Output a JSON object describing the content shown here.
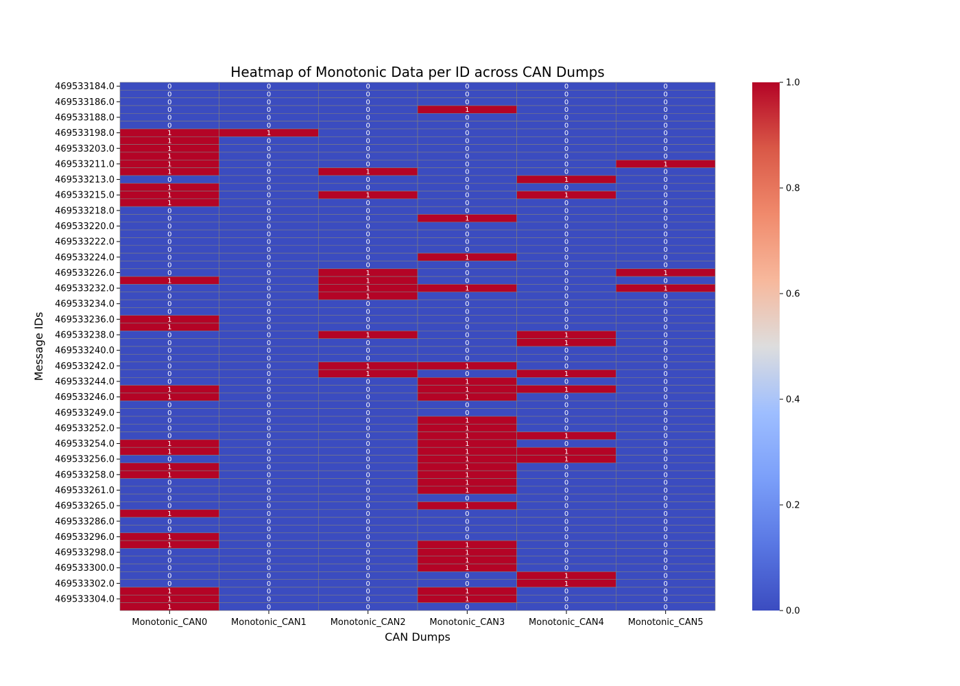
{
  "chart_data": {
    "type": "heatmap",
    "title": "Heatmap of Monotonic Data per ID across CAN Dumps",
    "xlabel": "CAN Dumps",
    "ylabel": "Message IDs",
    "columns": [
      "Monotonic_CAN0",
      "Monotonic_CAN1",
      "Monotonic_CAN2",
      "Monotonic_CAN3",
      "Monotonic_CAN4",
      "Monotonic_CAN5"
    ],
    "y_tick_labels": [
      "469533184.0",
      "",
      "469533186.0",
      "",
      "469533188.0",
      "",
      "469533198.0",
      "",
      "469533203.0",
      "",
      "469533211.0",
      "",
      "469533213.0",
      "",
      "469533215.0",
      "",
      "469533218.0",
      "",
      "469533220.0",
      "",
      "469533222.0",
      "",
      "469533224.0",
      "",
      "469533226.0",
      "",
      "469533232.0",
      "",
      "469533234.0",
      "",
      "469533236.0",
      "",
      "469533238.0",
      "",
      "469533240.0",
      "",
      "469533242.0",
      "",
      "469533244.0",
      "",
      "469533246.0",
      "",
      "469533249.0",
      "",
      "469533252.0",
      "",
      "469533254.0",
      "",
      "469533256.0",
      "",
      "469533258.0",
      "",
      "469533261.0",
      "",
      "469533265.0",
      "",
      "469533286.0",
      "",
      "469533296.0",
      "",
      "469533298.0",
      "",
      "469533300.0",
      "",
      "469533302.0",
      "",
      "469533304.0",
      ""
    ],
    "values": [
      [
        0,
        0,
        0,
        0,
        0,
        0
      ],
      [
        0,
        0,
        0,
        0,
        0,
        0
      ],
      [
        0,
        0,
        0,
        0,
        0,
        0
      ],
      [
        0,
        0,
        0,
        1,
        0,
        0
      ],
      [
        0,
        0,
        0,
        0,
        0,
        0
      ],
      [
        0,
        0,
        0,
        0,
        0,
        0
      ],
      [
        1,
        1,
        0,
        0,
        0,
        0
      ],
      [
        1,
        0,
        0,
        0,
        0,
        0
      ],
      [
        1,
        0,
        0,
        0,
        0,
        0
      ],
      [
        1,
        0,
        0,
        0,
        0,
        0
      ],
      [
        1,
        0,
        0,
        0,
        0,
        1
      ],
      [
        1,
        0,
        1,
        0,
        0,
        0
      ],
      [
        0,
        0,
        0,
        0,
        1,
        0
      ],
      [
        1,
        0,
        0,
        0,
        0,
        0
      ],
      [
        1,
        0,
        1,
        0,
        1,
        0
      ],
      [
        1,
        0,
        0,
        0,
        0,
        0
      ],
      [
        0,
        0,
        0,
        0,
        0,
        0
      ],
      [
        0,
        0,
        0,
        1,
        0,
        0
      ],
      [
        0,
        0,
        0,
        0,
        0,
        0
      ],
      [
        0,
        0,
        0,
        0,
        0,
        0
      ],
      [
        0,
        0,
        0,
        0,
        0,
        0
      ],
      [
        0,
        0,
        0,
        0,
        0,
        0
      ],
      [
        0,
        0,
        0,
        1,
        0,
        0
      ],
      [
        0,
        0,
        0,
        0,
        0,
        0
      ],
      [
        0,
        0,
        1,
        0,
        0,
        1
      ],
      [
        1,
        0,
        1,
        0,
        0,
        0
      ],
      [
        0,
        0,
        1,
        1,
        0,
        1
      ],
      [
        0,
        0,
        1,
        0,
        0,
        0
      ],
      [
        0,
        0,
        0,
        0,
        0,
        0
      ],
      [
        0,
        0,
        0,
        0,
        0,
        0
      ],
      [
        1,
        0,
        0,
        0,
        0,
        0
      ],
      [
        1,
        0,
        0,
        0,
        0,
        0
      ],
      [
        0,
        0,
        1,
        0,
        1,
        0
      ],
      [
        0,
        0,
        0,
        0,
        1,
        0
      ],
      [
        0,
        0,
        0,
        0,
        0,
        0
      ],
      [
        0,
        0,
        0,
        0,
        0,
        0
      ],
      [
        0,
        0,
        1,
        1,
        0,
        0
      ],
      [
        0,
        0,
        1,
        0,
        1,
        0
      ],
      [
        0,
        0,
        0,
        1,
        0,
        0
      ],
      [
        1,
        0,
        0,
        1,
        1,
        0
      ],
      [
        1,
        0,
        0,
        1,
        0,
        0
      ],
      [
        0,
        0,
        0,
        0,
        0,
        0
      ],
      [
        0,
        0,
        0,
        0,
        0,
        0
      ],
      [
        0,
        0,
        0,
        1,
        0,
        0
      ],
      [
        0,
        0,
        0,
        1,
        0,
        0
      ],
      [
        0,
        0,
        0,
        1,
        1,
        0
      ],
      [
        1,
        0,
        0,
        1,
        0,
        0
      ],
      [
        1,
        0,
        0,
        1,
        1,
        0
      ],
      [
        0,
        0,
        0,
        1,
        1,
        0
      ],
      [
        1,
        0,
        0,
        1,
        0,
        0
      ],
      [
        1,
        0,
        0,
        1,
        0,
        0
      ],
      [
        0,
        0,
        0,
        1,
        0,
        0
      ],
      [
        0,
        0,
        0,
        1,
        0,
        0
      ],
      [
        0,
        0,
        0,
        0,
        0,
        0
      ],
      [
        0,
        0,
        0,
        1,
        0,
        0
      ],
      [
        1,
        0,
        0,
        0,
        0,
        0
      ],
      [
        0,
        0,
        0,
        0,
        0,
        0
      ],
      [
        0,
        0,
        0,
        0,
        0,
        0
      ],
      [
        1,
        0,
        0,
        0,
        0,
        0
      ],
      [
        1,
        0,
        0,
        1,
        0,
        0
      ],
      [
        0,
        0,
        0,
        1,
        0,
        0
      ],
      [
        0,
        0,
        0,
        1,
        0,
        0
      ],
      [
        0,
        0,
        0,
        1,
        0,
        0
      ],
      [
        0,
        0,
        0,
        0,
        1,
        0
      ],
      [
        0,
        0,
        0,
        0,
        1,
        0
      ],
      [
        1,
        0,
        0,
        1,
        0,
        0
      ],
      [
        1,
        0,
        0,
        1,
        0,
        0
      ],
      [
        1,
        0,
        0,
        0,
        0,
        0
      ]
    ],
    "vmin": 0,
    "vmax": 1,
    "colormap": "coolwarm",
    "colors": {
      "low": "#3b4cc0",
      "high": "#b40426",
      "grid": "#808080",
      "annotation": "#ffffff"
    },
    "colorbar_ticks": [
      "0.0",
      "0.2",
      "0.4",
      "0.6",
      "0.8",
      "1.0"
    ],
    "grid": true,
    "legend": "colorbar-right"
  }
}
